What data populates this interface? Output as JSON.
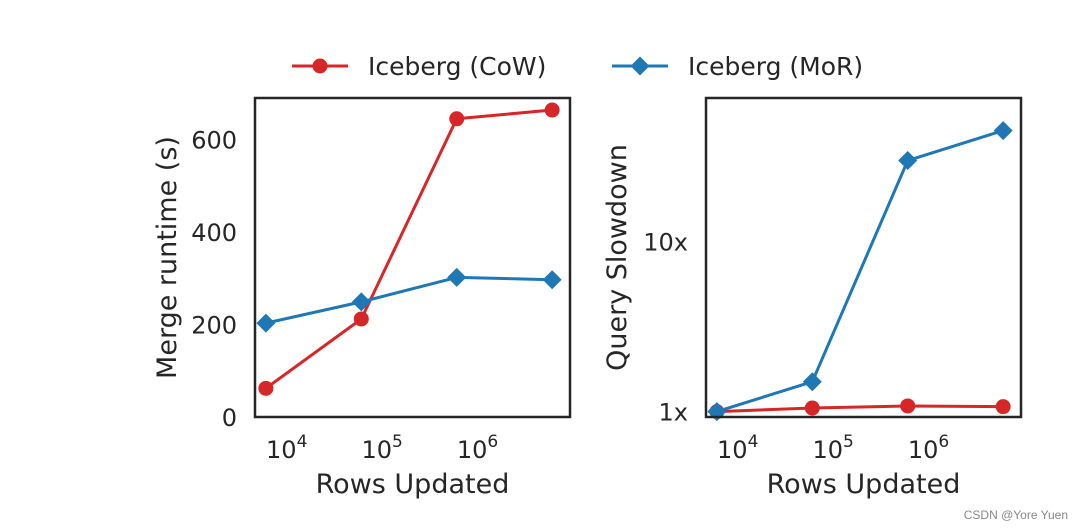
{
  "legend": [
    {
      "label": "Iceberg (CoW)",
      "color": "#d62728",
      "marker": "circle"
    },
    {
      "label": "Iceberg (MoR)",
      "color": "#1f77b4",
      "marker": "diamond"
    }
  ],
  "chart_data": [
    {
      "type": "line",
      "xscale": "log",
      "xlim": [
        5000,
        10000000
      ],
      "ylim": [
        0,
        690
      ],
      "xticks": [
        {
          "base": "10",
          "exp": "4",
          "value": 10000
        },
        {
          "base": "10",
          "exp": "5",
          "value": 100000
        },
        {
          "base": "10",
          "exp": "6",
          "value": 1000000
        }
      ],
      "yticks": [
        {
          "label": "0",
          "value": 0
        },
        {
          "label": "200",
          "value": 200
        },
        {
          "label": "400",
          "value": 400
        },
        {
          "label": "600",
          "value": 600
        }
      ],
      "xlabel": "Rows Updated",
      "ylabel": "Merge runtime (s)",
      "series": [
        {
          "name": "Iceberg (CoW)",
          "color": "#d62728",
          "marker": "circle",
          "x": [
            6500,
            65000,
            650000,
            6500000
          ],
          "y": [
            62,
            212,
            645,
            664
          ]
        },
        {
          "name": "Iceberg (MoR)",
          "color": "#1f77b4",
          "marker": "diamond",
          "x": [
            6500,
            65000,
            650000,
            6500000
          ],
          "y": [
            203,
            249,
            302,
            297
          ]
        }
      ]
    },
    {
      "type": "line",
      "xscale": "log",
      "yscale": "log",
      "xlim": [
        5000,
        10000000
      ],
      "ylim": [
        0.93,
        70
      ],
      "xticks": [
        {
          "base": "10",
          "exp": "4",
          "value": 10000
        },
        {
          "base": "10",
          "exp": "5",
          "value": 100000
        },
        {
          "base": "10",
          "exp": "6",
          "value": 1000000
        }
      ],
      "yticks": [
        {
          "label": "1x",
          "value": 1
        },
        {
          "label": "10x",
          "value": 10
        }
      ],
      "xlabel": "Rows Updated",
      "ylabel": "Query Slowdown",
      "series": [
        {
          "name": "Iceberg (CoW)",
          "color": "#d62728",
          "marker": "circle",
          "x": [
            6500,
            65000,
            650000,
            6500000
          ],
          "y": [
            1.0,
            1.05,
            1.08,
            1.07
          ]
        },
        {
          "name": "Iceberg (MoR)",
          "color": "#1f77b4",
          "marker": "diamond",
          "x": [
            6500,
            65000,
            650000,
            6500000
          ],
          "y": [
            1.0,
            1.5,
            30,
            45
          ]
        }
      ]
    }
  ],
  "watermark": "CSDN @Yore Yuen"
}
